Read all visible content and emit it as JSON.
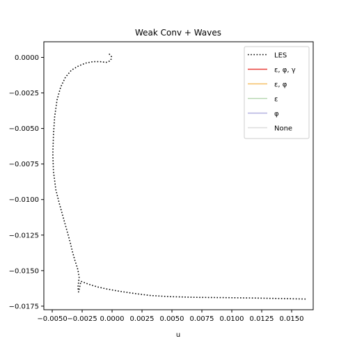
{
  "chart_data": {
    "type": "line",
    "title": "Weak Conv + Waves",
    "xlabel": "u",
    "ylabel": "",
    "xlim": [
      -0.0057,
      0.0168
    ],
    "ylim": [
      -0.01775,
      0.0011
    ],
    "x_ticks": [
      -0.005,
      -0.0025,
      0.0,
      0.0025,
      0.005,
      0.0075,
      0.01,
      0.0125,
      0.015
    ],
    "x_tick_labels": [
      "−0.0050",
      "−0.0025",
      "0.0000",
      "0.0025",
      "0.0050",
      "0.0075",
      "0.0100",
      "0.0125",
      "0.0150"
    ],
    "y_ticks": [
      0.0,
      -0.0025,
      -0.005,
      -0.0075,
      -0.01,
      -0.0125,
      -0.015,
      -0.0175
    ],
    "y_tick_labels": [
      "0.0000",
      "−0.0025",
      "−0.0050",
      "−0.0075",
      "−0.0100",
      "−0.0125",
      "−0.0150",
      "−0.0175"
    ],
    "grid": false,
    "legend_placement": "top-right",
    "series": [
      {
        "name": "LES",
        "color": "#000000",
        "style": "dotted",
        "x": [
          -0.00025,
          -5e-05,
          -0.0001,
          -0.0003,
          -0.0005,
          -0.001,
          -0.0016,
          -0.0022,
          -0.0028,
          -0.0034,
          -0.0039,
          -0.0043,
          -0.0046,
          -0.0048,
          -0.0049,
          -0.00495,
          -0.0049,
          -0.0047,
          -0.0044,
          -0.0041,
          -0.0038,
          -0.0035,
          -0.0033,
          -0.0031,
          -0.0029,
          -0.0028,
          -0.00275,
          -0.0028,
          -0.00285,
          -0.0028,
          -0.0026,
          -0.0023,
          -0.0018,
          -0.0012,
          -0.0004,
          0.0006,
          0.0018,
          0.0032,
          0.0048,
          0.007,
          0.0095,
          0.012,
          0.0145,
          0.0162
        ],
        "y": [
          0.00025,
          5e-05,
          -0.0002,
          -0.0003,
          -0.00035,
          -0.0003,
          -0.0003,
          -0.0004,
          -0.0006,
          -0.0009,
          -0.0014,
          -0.0021,
          -0.003,
          -0.0042,
          -0.0055,
          -0.0068,
          -0.008,
          -0.0093,
          -0.0103,
          -0.0112,
          -0.0121,
          -0.013,
          -0.0137,
          -0.0143,
          -0.0148,
          -0.0152,
          -0.0155,
          -0.0158,
          -0.0162,
          -0.0165,
          -0.01575,
          -0.01585,
          -0.016,
          -0.01615,
          -0.0163,
          -0.01645,
          -0.0166,
          -0.01675,
          -0.01683,
          -0.01688,
          -0.0169,
          -0.01693,
          -0.01697,
          -0.017
        ]
      },
      {
        "name": "ε, φ, γ",
        "color": "#e8413a",
        "style": "solid",
        "x": [],
        "y": []
      },
      {
        "name": "ε, φ",
        "color": "#f5c066",
        "style": "solid",
        "x": [],
        "y": []
      },
      {
        "name": "ε",
        "color": "#b6d7b0",
        "style": "solid",
        "x": [],
        "y": []
      },
      {
        "name": "φ",
        "color": "#b3b1e0",
        "style": "solid",
        "x": [],
        "y": []
      },
      {
        "name": "None",
        "color": "#dedede",
        "style": "solid",
        "x": [],
        "y": []
      }
    ]
  }
}
